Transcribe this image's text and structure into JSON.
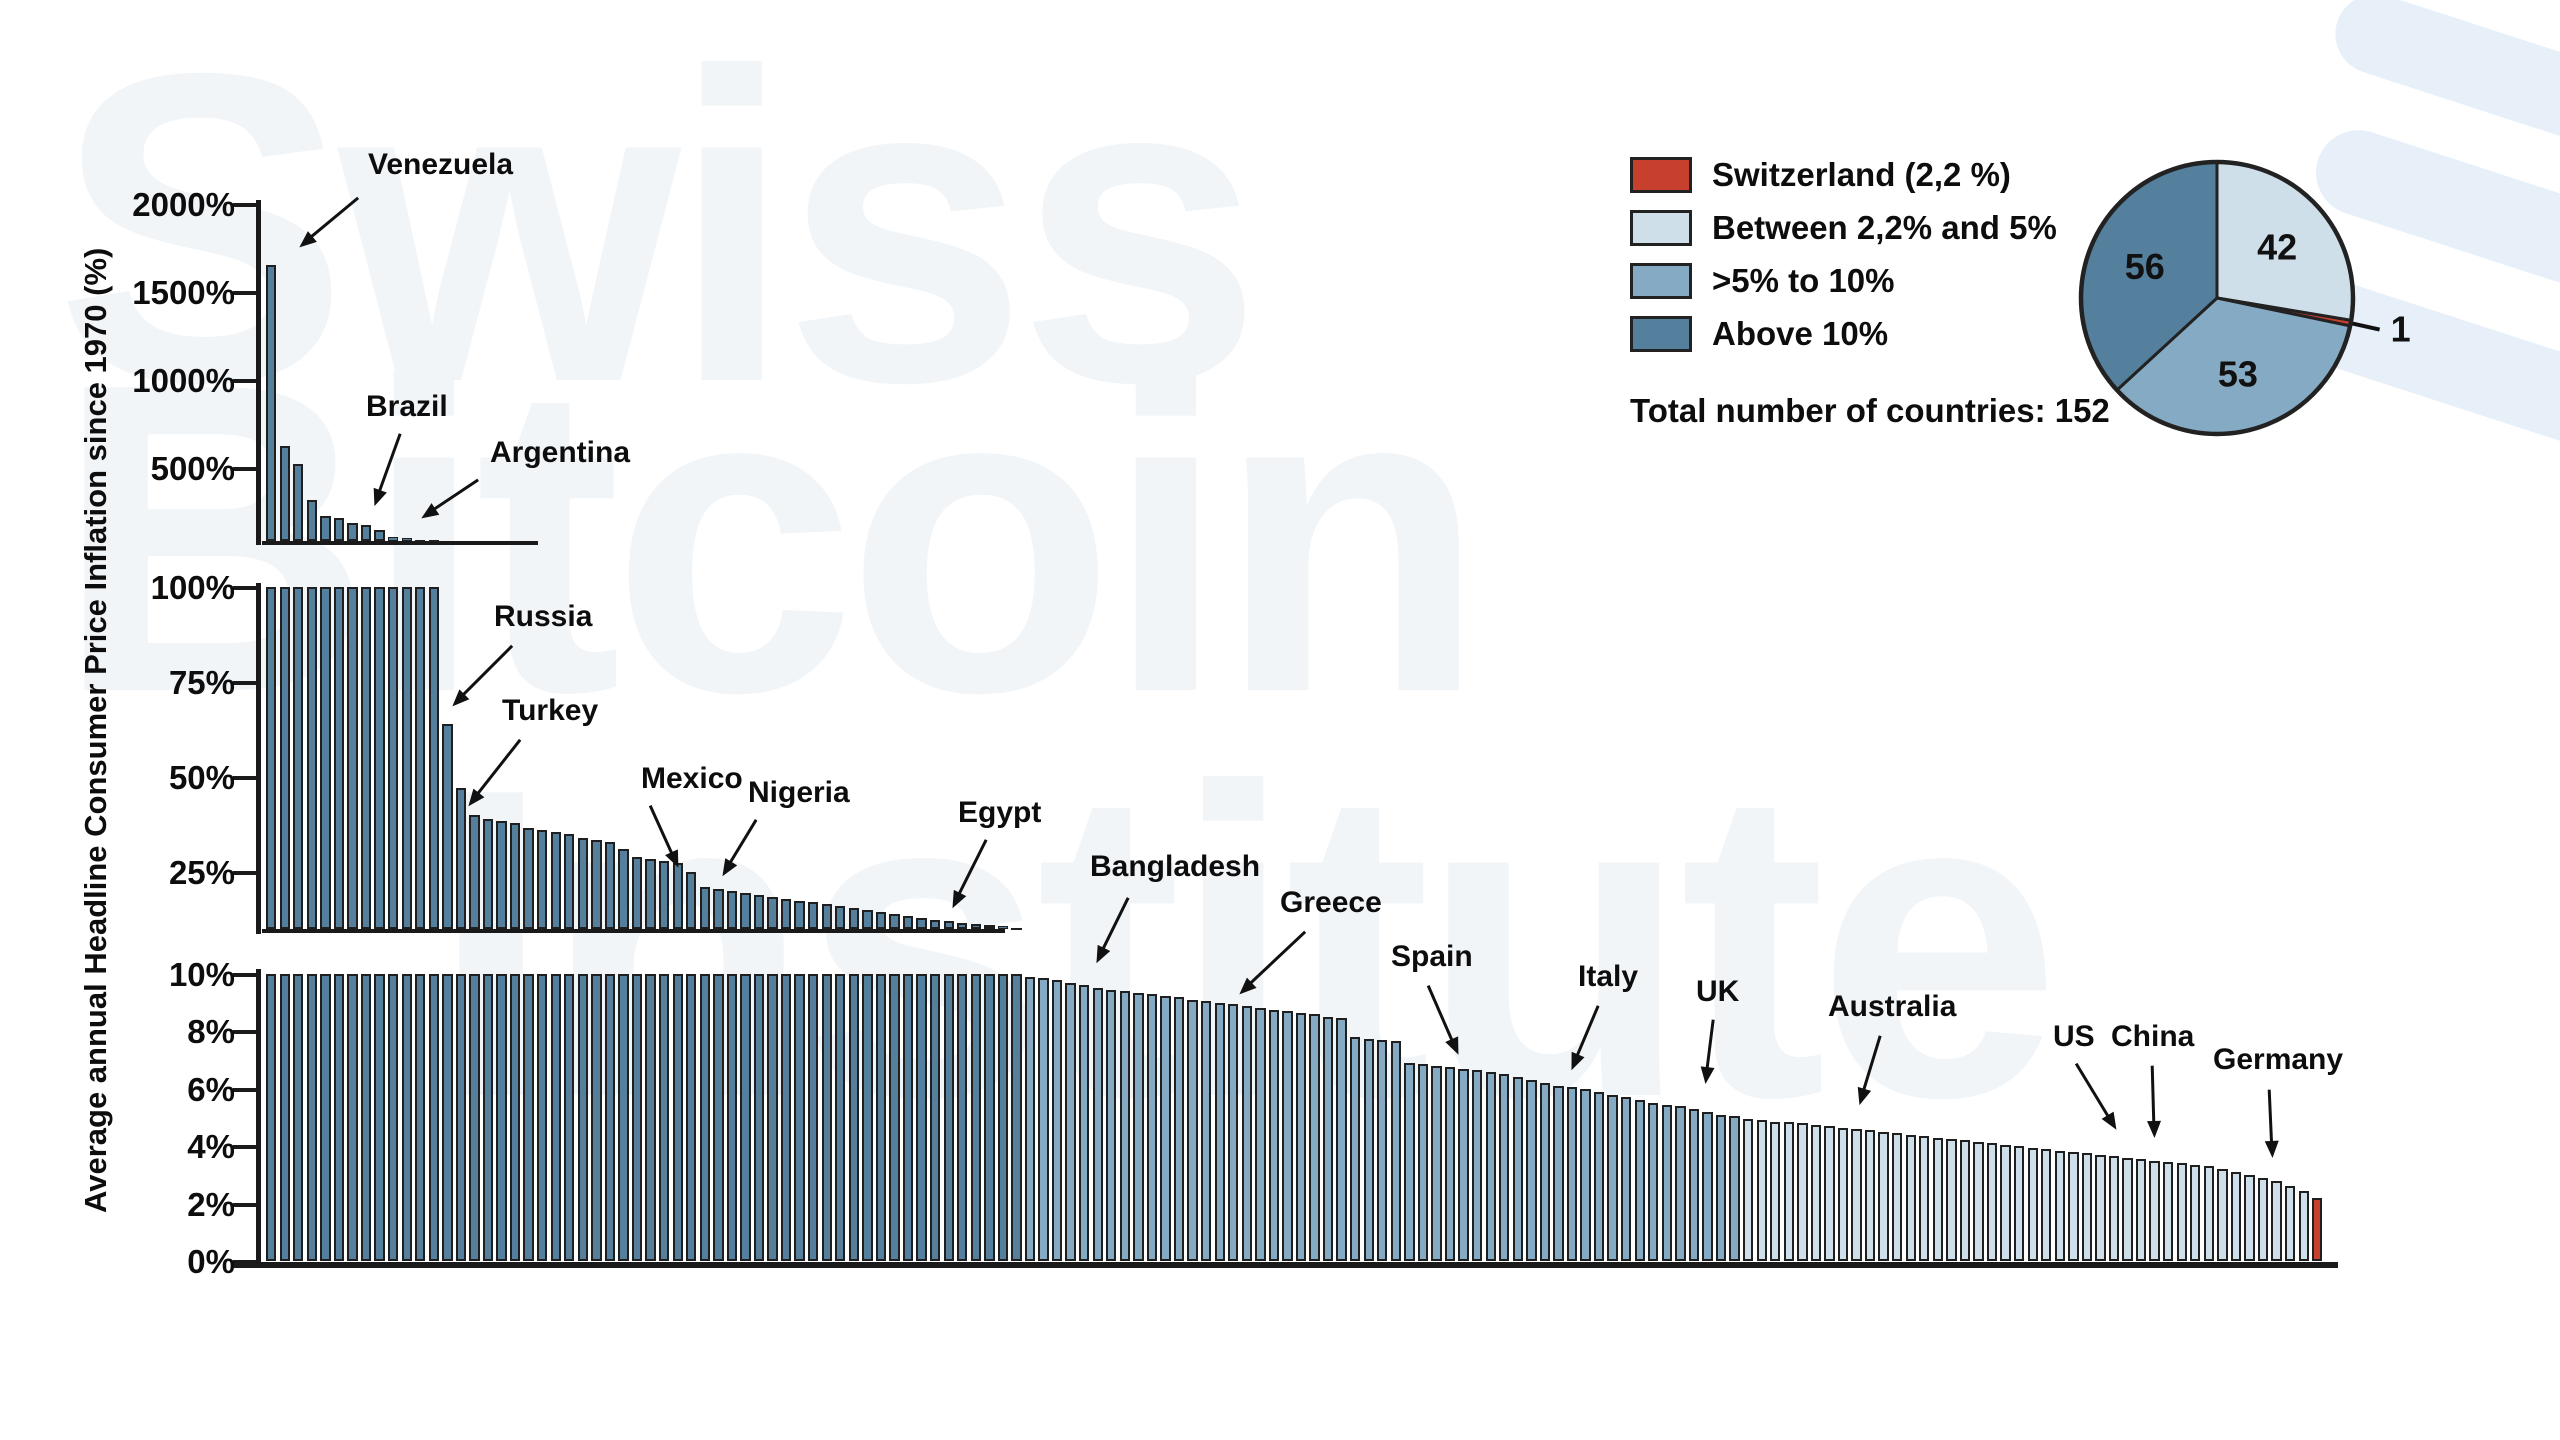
{
  "watermark": {
    "line1": "Swiss",
    "line2": "Bitcoin",
    "line3": "Institute"
  },
  "legend": {
    "items": [
      {
        "label": "Switzerland (2,2 %)",
        "color": "#c6402d"
      },
      {
        "label": "Between 2,2% and 5%",
        "color": "#cfdfea"
      },
      {
        "label": ">5% to 10%",
        "color": "#85aac3"
      },
      {
        "label": "Above 10%",
        "color": "#54809e"
      }
    ],
    "total_label": "Total number of countries: 152"
  },
  "chart_data": {
    "type": "bar",
    "title": "",
    "ylabel": "Average annual Headline Consumer Price Inflation since 1970 (%)",
    "total_countries": 152,
    "legend_position": "top-right",
    "grid": false,
    "note": "152 countries sorted descending by average annual inflation since 1970; broken y-axis in three panels; country names shown only for annotated countries",
    "colors": {
      "above_10": "#54809e",
      "5_to_10": "#85aac3",
      "2_2_to_5": "#cfdfea",
      "switzerland": "#c6402d",
      "outline": "#1f1f1f"
    },
    "panels": [
      {
        "name": "top",
        "ylim": [
          100,
          2000
        ],
        "yticks": [
          "2000%",
          "1500%",
          "1000%",
          "500%"
        ],
        "ytick_values": [
          2000,
          1500,
          1000,
          500
        ],
        "color_key": "above_10",
        "bar_values": [
          1670,
          640,
          540,
          335,
          240,
          230,
          205,
          190,
          163,
          122,
          116,
          106,
          102
        ]
      },
      {
        "name": "middle",
        "ylim": [
          10,
          100
        ],
        "yticks": [
          "100%",
          "75%",
          "50%",
          "25%"
        ],
        "ytick_values": [
          100,
          75,
          50,
          25
        ],
        "color_key": "above_10",
        "bar_values": [
          100,
          100,
          100,
          100,
          100,
          100,
          100,
          100,
          100,
          100,
          100,
          100,
          100,
          64,
          47,
          40,
          39,
          38.5,
          38,
          36.5,
          36,
          35.5,
          35,
          34,
          33.5,
          33,
          31,
          29,
          28.5,
          28,
          27.5,
          25,
          21,
          20.5,
          20,
          19.5,
          19,
          18.5,
          18,
          17.5,
          17,
          16.5,
          16,
          15.5,
          15,
          14.5,
          14,
          13.5,
          13,
          12.5,
          12,
          11.7,
          11.4,
          11.1,
          10.7,
          10.3
        ]
      },
      {
        "name": "bottom",
        "ylim": [
          0,
          10
        ],
        "yticks": [
          "10%",
          "8%",
          "6%",
          "4%",
          "2%",
          "0%"
        ],
        "ytick_values": [
          10,
          8,
          6,
          4,
          2,
          0
        ],
        "color_counts": {
          "above_10": 56,
          "5_to_10": 53,
          "2_2_to_5": 42,
          "switzerland": 1
        },
        "bar_values": [
          10,
          10,
          10,
          10,
          10,
          10,
          10,
          10,
          10,
          10,
          10,
          10,
          10,
          10,
          10,
          10,
          10,
          10,
          10,
          10,
          10,
          10,
          10,
          10,
          10,
          10,
          10,
          10,
          10,
          10,
          10,
          10,
          10,
          10,
          10,
          10,
          10,
          10,
          10,
          10,
          10,
          10,
          10,
          10,
          10,
          10,
          10,
          10,
          10,
          10,
          10,
          10,
          10,
          10,
          10,
          10,
          9.9,
          9.85,
          9.8,
          9.7,
          9.6,
          9.5,
          9.45,
          9.4,
          9.35,
          9.3,
          9.25,
          9.2,
          9.1,
          9.05,
          9.0,
          8.95,
          8.9,
          8.8,
          8.75,
          8.7,
          8.65,
          8.6,
          8.5,
          8.45,
          7.8,
          7.75,
          7.7,
          7.65,
          6.9,
          6.85,
          6.8,
          6.75,
          6.7,
          6.65,
          6.6,
          6.5,
          6.4,
          6.3,
          6.2,
          6.1,
          6.05,
          6.0,
          5.9,
          5.8,
          5.7,
          5.6,
          5.5,
          5.45,
          5.4,
          5.3,
          5.2,
          5.1,
          5.05,
          4.95,
          4.9,
          4.85,
          4.85,
          4.8,
          4.75,
          4.7,
          4.65,
          4.6,
          4.55,
          4.5,
          4.45,
          4.4,
          4.35,
          4.3,
          4.25,
          4.2,
          4.15,
          4.1,
          4.05,
          4.0,
          3.95,
          3.9,
          3.85,
          3.8,
          3.75,
          3.7,
          3.65,
          3.6,
          3.55,
          3.5,
          3.45,
          3.4,
          3.35,
          3.3,
          3.2,
          3.1,
          3.0,
          2.9,
          2.8,
          2.6,
          2.45,
          2.2
        ]
      }
    ],
    "annotations": [
      {
        "label": "Venezuela",
        "text": [
          368,
          148
        ],
        "arrow": [
          [
            358,
            198
          ],
          [
            299,
            247
          ]
        ]
      },
      {
        "label": "Brazil",
        "text": [
          366,
          390
        ],
        "arrow": [
          [
            400,
            434
          ],
          [
            374,
            506
          ]
        ]
      },
      {
        "label": "Argentina",
        "text": [
          490,
          436
        ],
        "arrow": [
          [
            478,
            480
          ],
          [
            421,
            518
          ]
        ]
      },
      {
        "label": "Russia",
        "text": [
          494,
          600
        ],
        "arrow": [
          [
            512,
            646
          ],
          [
            452,
            706
          ]
        ]
      },
      {
        "label": "Turkey",
        "text": [
          502,
          694
        ],
        "arrow": [
          [
            520,
            740
          ],
          [
            468,
            806
          ]
        ]
      },
      {
        "label": "Mexico",
        "text": [
          641,
          762
        ],
        "arrow": [
          [
            650,
            806
          ],
          [
            678,
            868
          ]
        ]
      },
      {
        "label": "Nigeria",
        "text": [
          748,
          776
        ],
        "arrow": [
          [
            756,
            820
          ],
          [
            722,
            876
          ]
        ]
      },
      {
        "label": "Egypt",
        "text": [
          958,
          796
        ],
        "arrow": [
          [
            986,
            840
          ],
          [
            952,
            908
          ]
        ]
      },
      {
        "label": "Bangladesh",
        "text": [
          1090,
          850
        ],
        "arrow": [
          [
            1128,
            898
          ],
          [
            1096,
            963
          ]
        ]
      },
      {
        "label": "Greece",
        "text": [
          1280,
          886
        ],
        "arrow": [
          [
            1305,
            932
          ],
          [
            1239,
            994
          ]
        ]
      },
      {
        "label": "Spain",
        "text": [
          1391,
          940
        ],
        "arrow": [
          [
            1428,
            986
          ],
          [
            1458,
            1055
          ]
        ]
      },
      {
        "label": "Italy",
        "text": [
          1578,
          960
        ],
        "arrow": [
          [
            1598,
            1006
          ],
          [
            1571,
            1070
          ]
        ]
      },
      {
        "label": "UK",
        "text": [
          1696,
          975
        ],
        "arrow": [
          [
            1713,
            1020
          ],
          [
            1705,
            1084
          ]
        ]
      },
      {
        "label": "Australia",
        "text": [
          1828,
          990
        ],
        "arrow": [
          [
            1880,
            1036
          ],
          [
            1859,
            1105
          ]
        ]
      },
      {
        "label": "US",
        "text": [
          2053,
          1020
        ],
        "arrow": [
          [
            2076,
            1064
          ],
          [
            2116,
            1130
          ]
        ]
      },
      {
        "label": "China",
        "text": [
          2111,
          1020
        ],
        "arrow": [
          [
            2152,
            1066
          ],
          [
            2154,
            1138
          ]
        ]
      },
      {
        "label": "Germany",
        "text": [
          2213,
          1043
        ],
        "arrow": [
          [
            2269,
            1090
          ],
          [
            2272,
            1158
          ]
        ]
      }
    ],
    "pie": {
      "values": [
        42,
        1,
        53,
        56
      ],
      "labels": [
        "42",
        "1",
        "53",
        "56"
      ],
      "color_keys": [
        "2_2_to_5",
        "switzerland",
        "5_to_10",
        "above_10"
      ],
      "start_angle_deg": 0,
      "external_label_index": 1
    }
  }
}
